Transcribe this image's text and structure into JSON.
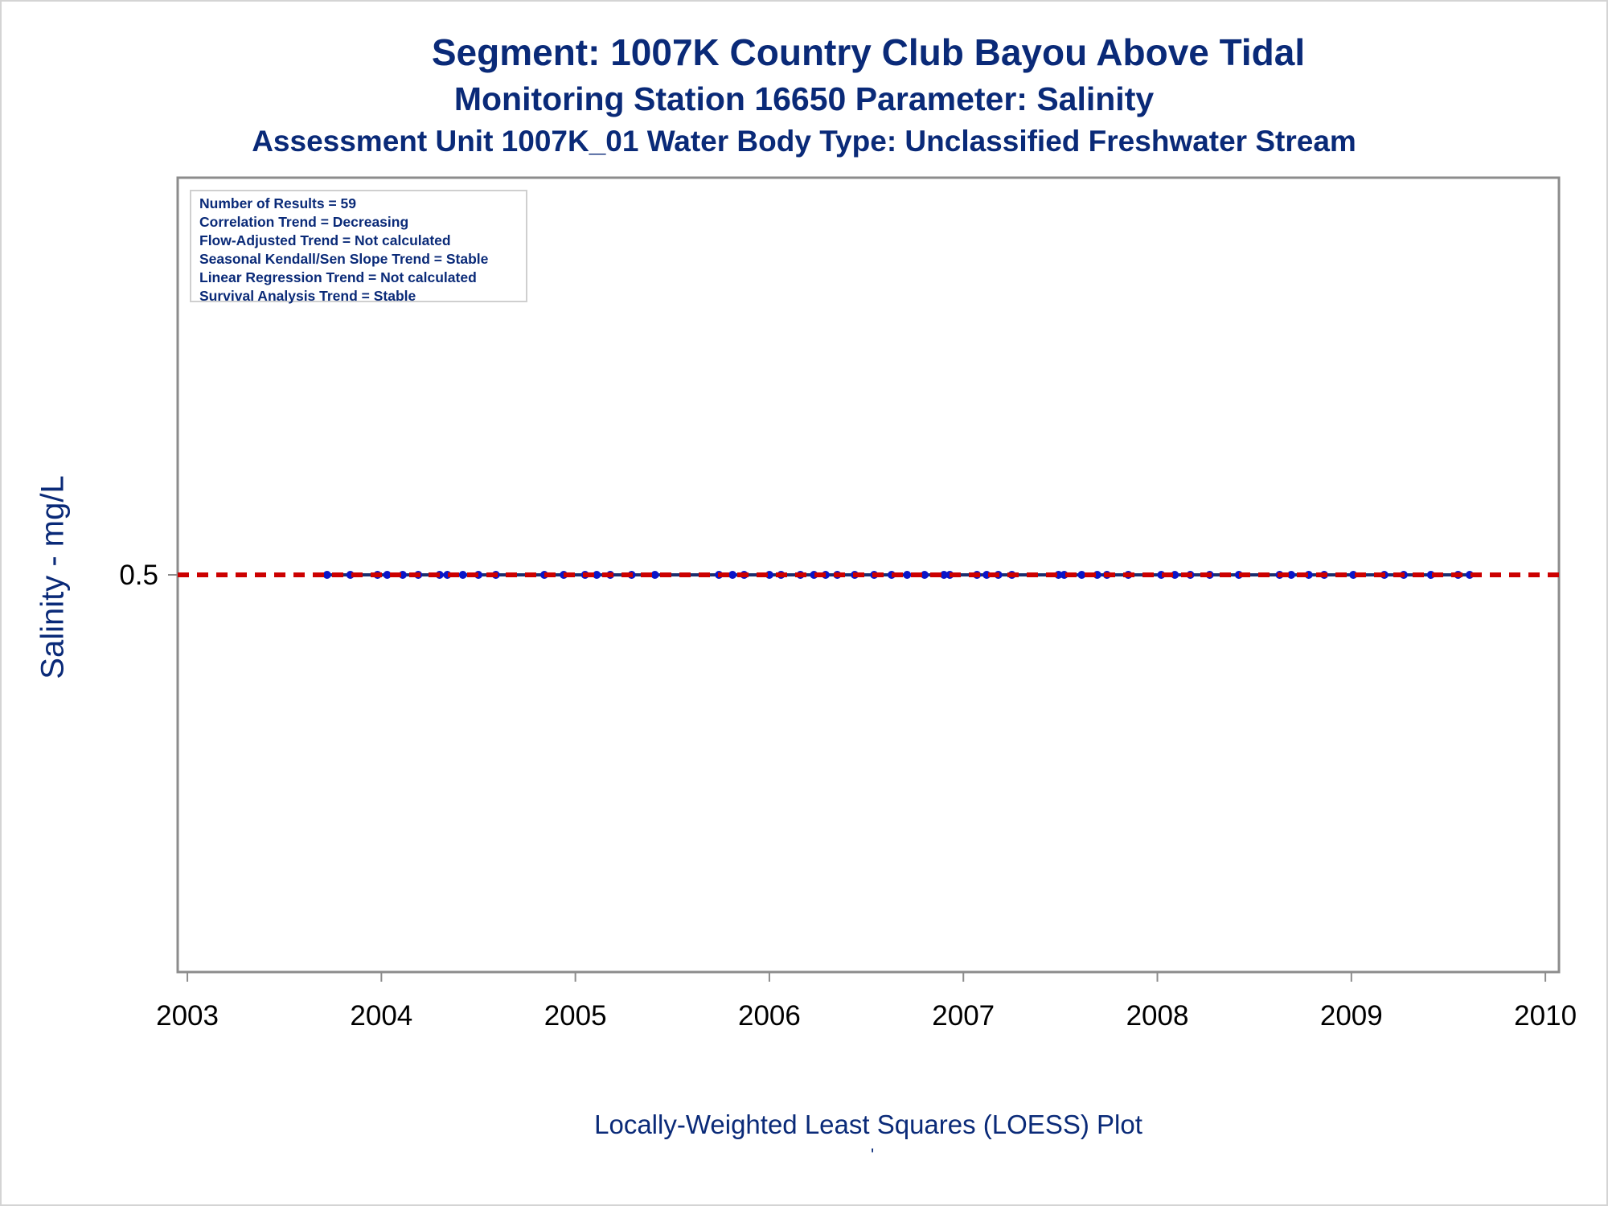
{
  "chart_data": {
    "type": "scatter",
    "title": "Segment: 1007K  Country Club Bayou Above Tidal",
    "subtitle": "Monitoring Station 16650 Parameter: Salinity",
    "subtitle2": "Assessment Unit 1007K_01   Water Body Type: Unclassified Freshwater Stream",
    "xlabel": "Locally-Weighted Least Squares (LOESS) Plot",
    "ylabel": "Salinity - mg/L",
    "footnote": "'",
    "xlim": [
      2002.95,
      2010.07
    ],
    "ylim": [
      0.0,
      1.0
    ],
    "x_ticks": [
      2003,
      2004,
      2005,
      2006,
      2007,
      2008,
      2009,
      2010
    ],
    "y_ticks": [
      0.5
    ],
    "grid": false,
    "stats_box": {
      "placement": "top-left",
      "lines": [
        "Number of Results = 59",
        "Correlation Trend = Decreasing",
        "Flow-Adjusted Trend = Not calculated",
        "Seasonal Kendall/Sen Slope Trend = Stable",
        "Linear Regression Trend = Not calculated",
        "Survival Analysis Trend = Stable"
      ]
    },
    "reference_line": {
      "y": 0.5,
      "style": "dashed",
      "color": "#cc0000"
    },
    "series": [
      {
        "kind": "points",
        "color": "#0a14c8",
        "x": [
          2003.72,
          2003.84,
          2003.98,
          2004.03,
          2004.11,
          2004.19,
          2004.3,
          2004.34,
          2004.42,
          2004.5,
          2004.59,
          2004.84,
          2004.94,
          2005.05,
          2005.11,
          2005.18,
          2005.29,
          2005.41,
          2005.74,
          2005.81,
          2005.87,
          2006.0,
          2006.06,
          2006.16,
          2006.23,
          2006.29,
          2006.35,
          2006.44,
          2006.54,
          2006.63,
          2006.71,
          2006.8,
          2006.9,
          2006.93,
          2007.07,
          2007.12,
          2007.18,
          2007.25,
          2007.49,
          2007.52,
          2007.61,
          2007.69,
          2007.74,
          2007.85,
          2008.02,
          2008.09,
          2008.17,
          2008.27,
          2008.42,
          2008.63,
          2008.69,
          2008.78,
          2008.86,
          2009.01,
          2009.17,
          2009.27,
          2009.41,
          2009.55,
          2009.61
        ],
        "y": [
          0.5,
          0.5,
          0.5,
          0.5,
          0.5,
          0.5,
          0.5,
          0.5,
          0.5,
          0.5,
          0.5,
          0.5,
          0.5,
          0.5,
          0.5,
          0.5,
          0.5,
          0.5,
          0.5,
          0.5,
          0.5,
          0.5,
          0.5,
          0.5,
          0.5,
          0.5,
          0.5,
          0.5,
          0.5,
          0.5,
          0.5,
          0.5,
          0.5,
          0.5,
          0.5,
          0.5,
          0.5,
          0.5,
          0.5,
          0.5,
          0.5,
          0.5,
          0.5,
          0.5,
          0.5,
          0.5,
          0.5,
          0.5,
          0.5,
          0.5,
          0.5,
          0.5,
          0.5,
          0.5,
          0.5,
          0.5,
          0.5,
          0.5,
          0.5
        ]
      },
      {
        "kind": "loess-line",
        "color": "#1c2e6e",
        "x": [
          2003.72,
          2009.61
        ],
        "y": [
          0.5,
          0.5
        ]
      }
    ]
  }
}
